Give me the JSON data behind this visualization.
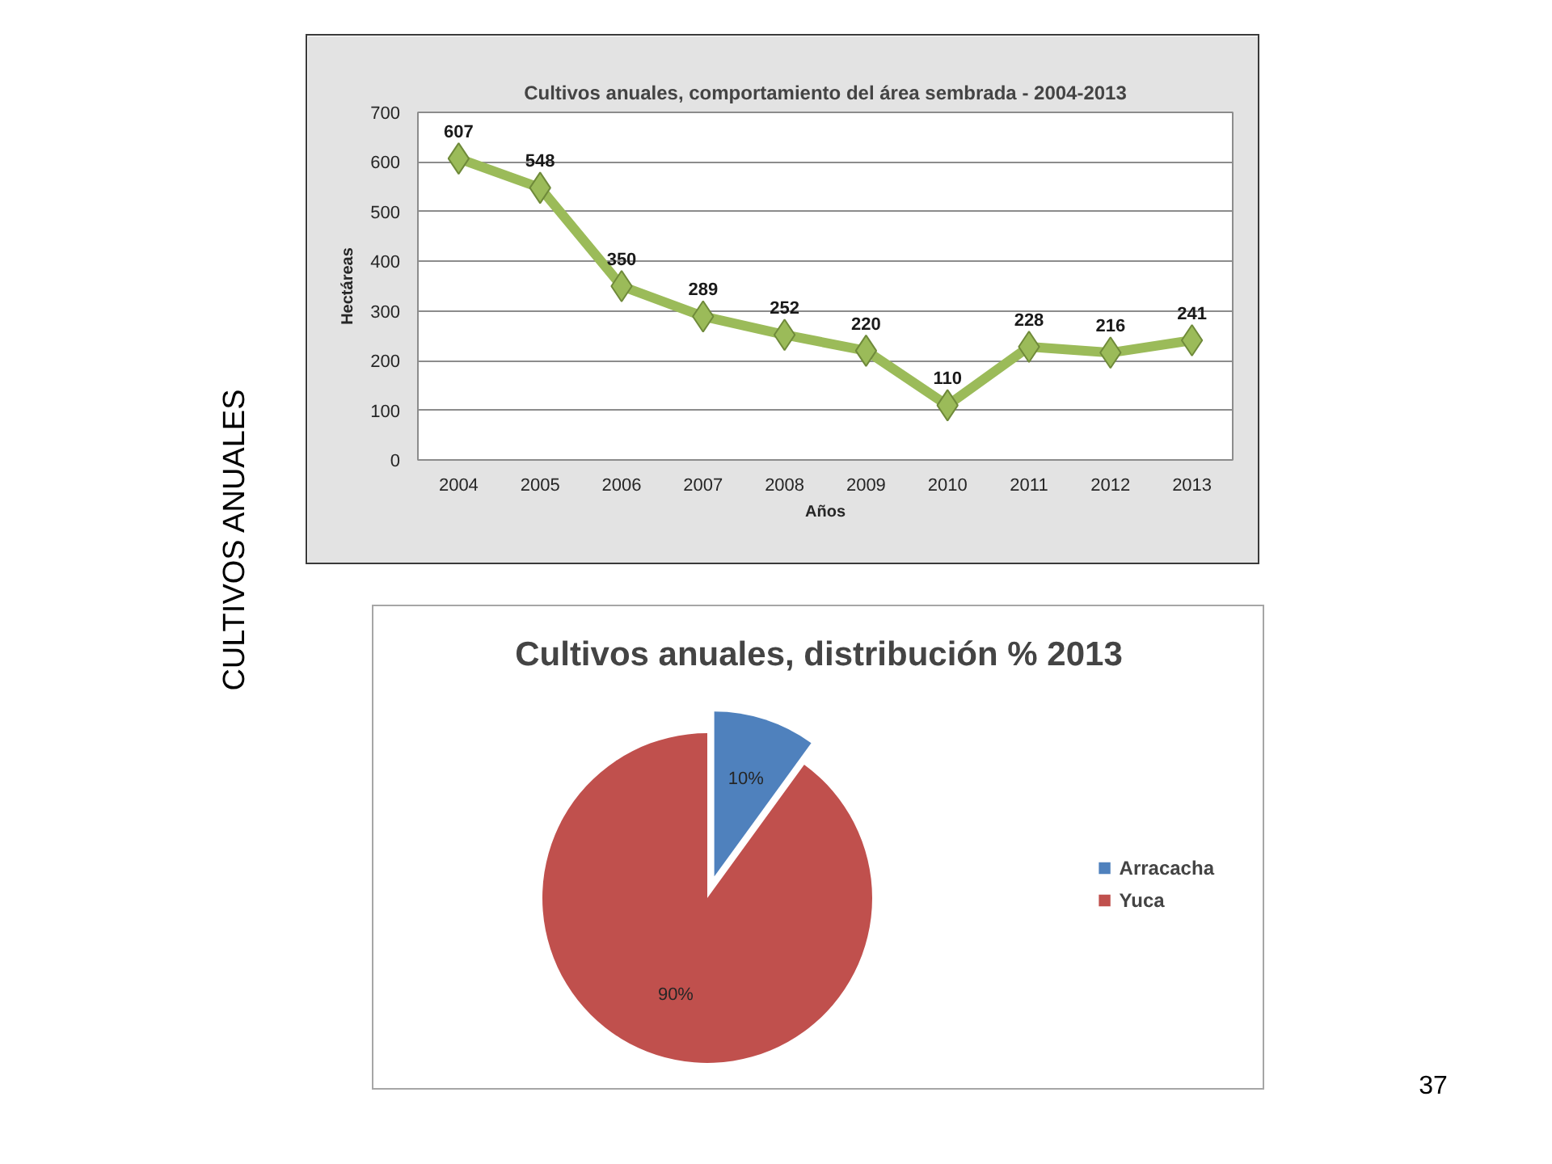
{
  "chart_data": [
    {
      "type": "line",
      "title": "Cultivos anuales, comportamiento del área sembrada - 2004-2013",
      "xlabel": "Años",
      "ylabel": "Hectáreas",
      "categories": [
        "2004",
        "2005",
        "2006",
        "2007",
        "2008",
        "2009",
        "2010",
        "2011",
        "2012",
        "2013"
      ],
      "series": [
        {
          "color": "#9bbb59",
          "values": [
            607,
            548,
            350,
            289,
            252,
            220,
            110,
            228,
            216,
            241
          ]
        }
      ],
      "ylim": [
        0,
        700
      ],
      "yticks": [
        0,
        100,
        200,
        300,
        400,
        500,
        600,
        700
      ],
      "grid": "y",
      "marker": "diamond",
      "data_labels": true,
      "annotations": [
        "CULTIVOS ANUALES"
      ]
    },
    {
      "type": "pie",
      "title": "Cultivos anuales, distribución % 2013",
      "categories": [
        "Arracacha",
        "Yuca"
      ],
      "values": [
        10,
        90
      ],
      "colors": [
        "#4f81bd",
        "#c0504d"
      ],
      "value_labels": [
        "10%",
        "90%"
      ],
      "legend": "right",
      "annotations": [
        "37"
      ]
    }
  ]
}
